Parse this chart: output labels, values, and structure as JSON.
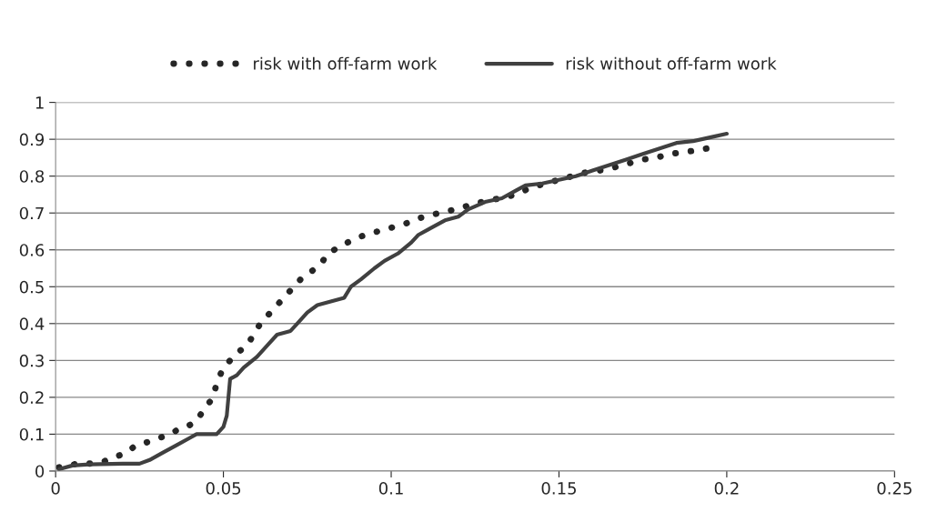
{
  "chart_data": {
    "type": "line",
    "xlim": [
      0,
      0.25
    ],
    "xticks": [
      0,
      0.05,
      0.1,
      0.15,
      0.2,
      0.25
    ],
    "ylim": [
      0,
      1
    ],
    "yticks": [
      0,
      0.1,
      0.2,
      0.3,
      0.4,
      0.5,
      0.6,
      0.7,
      0.8,
      0.9,
      1
    ],
    "grid": "y",
    "legend": "top",
    "series": [
      {
        "name": "risk with off-farm work",
        "color": "#262626",
        "line_style": "dotted",
        "x": [
          0.001,
          0.003,
          0.007,
          0.01,
          0.014,
          0.017,
          0.021,
          0.024,
          0.028,
          0.031,
          0.034,
          0.036,
          0.039,
          0.042,
          0.044,
          0.047,
          0.048,
          0.05,
          0.052,
          0.054,
          0.057,
          0.059,
          0.061,
          0.063,
          0.066,
          0.068,
          0.07,
          0.073,
          0.076,
          0.079,
          0.081,
          0.085,
          0.088,
          0.092,
          0.096,
          0.1,
          0.104,
          0.108,
          0.112,
          0.117,
          0.121,
          0.125,
          0.129,
          0.133,
          0.137,
          0.142,
          0.146,
          0.15,
          0.154,
          0.158,
          0.162,
          0.167,
          0.171,
          0.175,
          0.179,
          0.183,
          0.187,
          0.191,
          0.194
        ],
        "values": [
          0.01,
          0.015,
          0.02,
          0.02,
          0.025,
          0.035,
          0.05,
          0.07,
          0.08,
          0.09,
          0.1,
          0.11,
          0.12,
          0.135,
          0.165,
          0.2,
          0.24,
          0.28,
          0.3,
          0.32,
          0.34,
          0.37,
          0.4,
          0.42,
          0.45,
          0.47,
          0.49,
          0.52,
          0.54,
          0.56,
          0.59,
          0.61,
          0.625,
          0.64,
          0.65,
          0.66,
          0.67,
          0.685,
          0.695,
          0.705,
          0.715,
          0.725,
          0.735,
          0.74,
          0.75,
          0.77,
          0.78,
          0.79,
          0.8,
          0.81,
          0.815,
          0.825,
          0.835,
          0.845,
          0.85,
          0.86,
          0.865,
          0.87,
          0.875
        ]
      },
      {
        "name": "risk without off-farm work",
        "color": "#404040",
        "line_style": "solid",
        "x": [
          0.001,
          0.005,
          0.01,
          0.02,
          0.025,
          0.028,
          0.032,
          0.036,
          0.04,
          0.042,
          0.048,
          0.05,
          0.051,
          0.052,
          0.054,
          0.056,
          0.06,
          0.063,
          0.066,
          0.07,
          0.072,
          0.075,
          0.078,
          0.082,
          0.086,
          0.088,
          0.091,
          0.095,
          0.098,
          0.102,
          0.106,
          0.108,
          0.112,
          0.116,
          0.12,
          0.123,
          0.128,
          0.133,
          0.137,
          0.14,
          0.145,
          0.15,
          0.155,
          0.16,
          0.165,
          0.17,
          0.175,
          0.18,
          0.185,
          0.19,
          0.195,
          0.2
        ],
        "values": [
          0.005,
          0.015,
          0.018,
          0.02,
          0.02,
          0.03,
          0.05,
          0.07,
          0.09,
          0.1,
          0.1,
          0.12,
          0.15,
          0.25,
          0.26,
          0.28,
          0.31,
          0.34,
          0.37,
          0.38,
          0.4,
          0.43,
          0.45,
          0.46,
          0.47,
          0.5,
          0.52,
          0.55,
          0.57,
          0.59,
          0.62,
          0.64,
          0.66,
          0.68,
          0.69,
          0.71,
          0.73,
          0.74,
          0.76,
          0.775,
          0.78,
          0.79,
          0.8,
          0.815,
          0.83,
          0.845,
          0.86,
          0.875,
          0.89,
          0.895,
          0.905,
          0.915
        ]
      }
    ]
  }
}
